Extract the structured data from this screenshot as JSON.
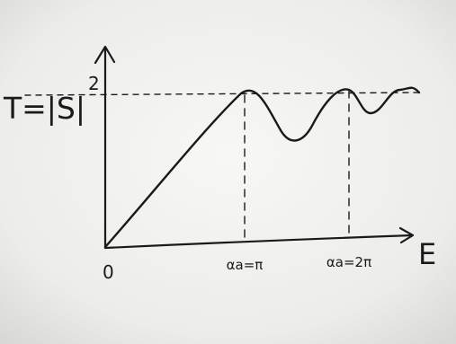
{
  "sketch": {
    "y_label": {
      "text": "T=|S|",
      "superscript": "2"
    },
    "x_label": "E",
    "origin_label": "0",
    "tick_labels": [
      "αa=π",
      "αa=2π"
    ]
  }
}
